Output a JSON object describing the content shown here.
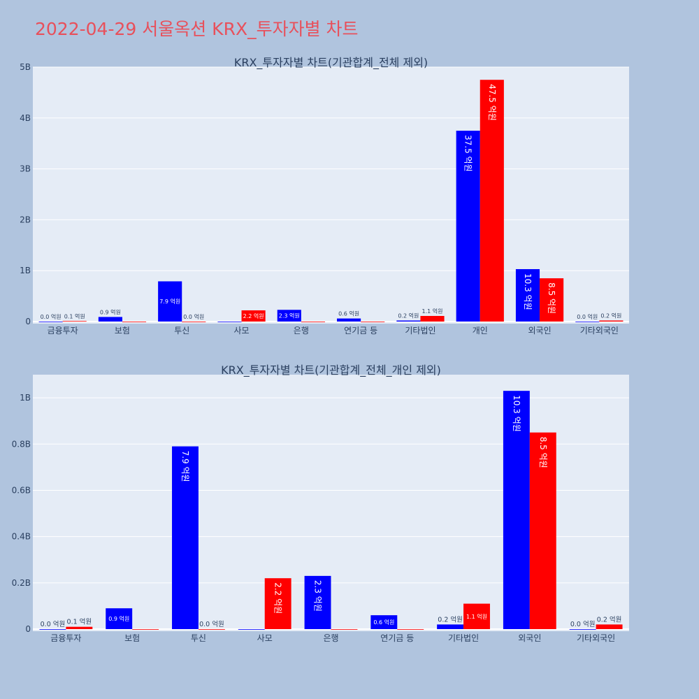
{
  "title": "2022-04-29 서울옥션 KRX_투자자별 차트",
  "colors": {
    "series_a": "#0000ff",
    "series_b": "#ff0000",
    "plot_bg": "#e5ecf6",
    "page_bg": "#b0c4de",
    "title": "#e8505b"
  },
  "chart_data": [
    {
      "type": "bar",
      "title": "KRX_투자자별 차트(기관합계_전체 제외)",
      "categories": [
        "금융투자",
        "보험",
        "투신",
        "사모",
        "은행",
        "연기금 등",
        "기타법인",
        "개인",
        "외국인",
        "기타외국인"
      ],
      "ylim": [
        0,
        5000000000
      ],
      "yticks": [
        0,
        1000000000,
        2000000000,
        3000000000,
        4000000000,
        5000000000
      ],
      "ytick_labels": [
        "0",
        "1B",
        "2B",
        "3B",
        "4B",
        "5B"
      ],
      "series": [
        {
          "values": [
            0,
            90000000,
            790000000,
            0,
            230000000,
            60000000,
            20000000,
            3750000000,
            1030000000,
            0
          ],
          "labels": [
            "0.0 억원",
            "0.9 억원",
            "7.9 억원",
            "",
            "2.3 억원",
            "0.6 억원",
            "0.2 억원",
            "37.5 억원",
            "10.3 억원",
            "0.0 억원"
          ]
        },
        {
          "values": [
            10000000,
            0,
            0,
            220000000,
            0,
            0,
            110000000,
            4750000000,
            850000000,
            20000000
          ],
          "labels": [
            "0.1 억원",
            "",
            "0.0 억원",
            "2.2 억원",
            "",
            "",
            "1.1 억원",
            "47.5 억원",
            "8.5 억원",
            "0.2 억원"
          ]
        }
      ]
    },
    {
      "type": "bar",
      "title": "KRX_투자자별 차트(기관합계_전체_개인 제외)",
      "categories": [
        "금융투자",
        "보험",
        "투신",
        "사모",
        "은행",
        "연기금 등",
        "기타법인",
        "외국인",
        "기타외국인"
      ],
      "ylim": [
        0,
        1100000000
      ],
      "yticks": [
        0,
        200000000,
        400000000,
        600000000,
        800000000,
        1000000000
      ],
      "ytick_labels": [
        "0",
        "0.2B",
        "0.4B",
        "0.6B",
        "0.8B",
        "1B"
      ],
      "series": [
        {
          "values": [
            0,
            90000000,
            790000000,
            0,
            230000000,
            60000000,
            20000000,
            1030000000,
            0
          ],
          "labels": [
            "0.0 억원",
            "0.9 억원",
            "7.9 억원",
            "",
            "2.3 억원",
            "0.6 억원",
            "0.2 억원",
            "10.3 억원",
            "0.0 억원"
          ]
        },
        {
          "values": [
            10000000,
            0,
            0,
            220000000,
            0,
            0,
            110000000,
            850000000,
            20000000
          ],
          "labels": [
            "0.1 억원",
            "",
            "0.0 억원",
            "2.2 억원",
            "",
            "",
            "1.1 억원",
            "8.5 억원",
            "0.2 억원"
          ]
        }
      ]
    }
  ]
}
